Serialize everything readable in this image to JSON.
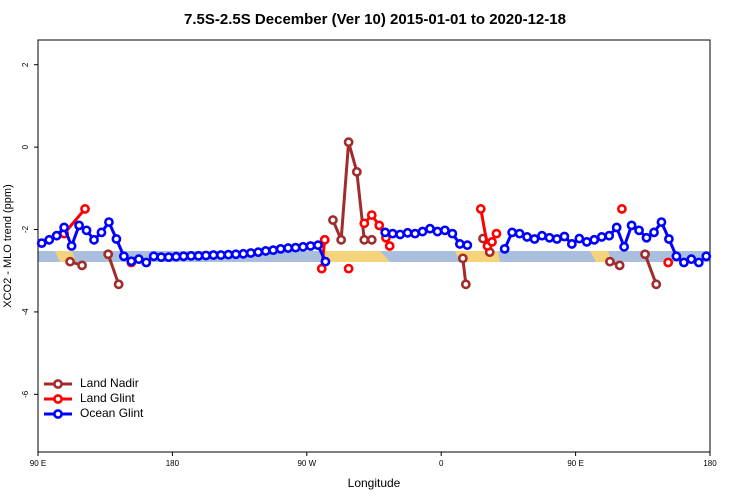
{
  "chart_data": {
    "type": "line",
    "title": "7.5S-2.5S December (Ver 10)   2015-01-01 to 2020-12-18",
    "x_label": "Longitude",
    "y_label": "XCO2 - MLO trend (ppm)",
    "xlim": [
      90,
      540
    ],
    "ylim": [
      -7.4,
      2.6
    ],
    "xticks": [
      {
        "value": 90,
        "label": "90 E"
      },
      {
        "value": 180,
        "label": "180"
      },
      {
        "value": 270,
        "label": "90 W"
      },
      {
        "value": 360,
        "label": "0"
      },
      {
        "value": 450,
        "label": "90 E"
      },
      {
        "value": 540,
        "label": "180"
      }
    ],
    "yticks": [
      2,
      0,
      -2,
      -4,
      -6
    ],
    "legend": "bottom-left",
    "series": [
      {
        "name": "Land Nadir",
        "color": "#a02c2c",
        "x": [
          111.5,
          119.5,
          127.5,
          137,
          144,
          215,
          287.5,
          293,
          298,
          303.5,
          308.5,
          313.5,
          345,
          374.5,
          376.5,
          382,
          388,
          392.5,
          435,
          473,
          479.5,
          487.5,
          496.5,
          504
        ],
        "values": [
          -2.78,
          -2.87,
          null,
          -2.6,
          -3.33,
          null,
          -1.77,
          -2.25,
          0.12,
          -0.6,
          -2.25,
          -2.25,
          null,
          -2.7,
          -3.33,
          null,
          -2.22,
          -2.55,
          null,
          -2.78,
          -2.87,
          null,
          -2.6,
          -3.33
        ]
      },
      {
        "name": "Land Glint",
        "color": "#ff0000",
        "x": [
          107.5,
          121.5,
          137,
          152.5,
          215,
          280,
          282,
          290,
          298,
          303,
          308.5,
          313.5,
          318.5,
          323,
          325.5,
          355,
          386.5,
          391,
          394,
          397,
          440,
          481,
          500,
          512
        ],
        "values": [
          -2.1,
          -1.5,
          null,
          -2.8,
          null,
          -2.95,
          -2.25,
          null,
          -2.95,
          null,
          -1.85,
          -1.65,
          -1.9,
          -2.2,
          -2.4,
          null,
          -1.5,
          -2.4,
          -2.3,
          -2.1,
          null,
          -1.5,
          null,
          -2.8
        ]
      },
      {
        "name": "Ocean Glint",
        "color": "#0000ff",
        "x": [
          92.5,
          97.5,
          102.5,
          107.5,
          112.5,
          117.5,
          122.5,
          127.5,
          132.5,
          137.5,
          142.5,
          147.5,
          152.5,
          157.5,
          162.5,
          167.5,
          172.5,
          177.5,
          182.5,
          187.5,
          192.5,
          197.5,
          202.5,
          207.5,
          212.5,
          217.5,
          222.5,
          227.5,
          232.5,
          237.5,
          242.5,
          247.5,
          252.5,
          257.5,
          262.5,
          267.5,
          272.5,
          277.5,
          282.5,
          287.5,
          322.5,
          327.5,
          332.5,
          337.5,
          342.5,
          347.5,
          352.5,
          357.5,
          362.5,
          367.5,
          372.5,
          377.5,
          382.5,
          402.5,
          407.5,
          412.5,
          417.5,
          422.5,
          427.5,
          432.5,
          437.5,
          442.5,
          447.5,
          452.5,
          457.5,
          462.5,
          467.5,
          472.5,
          477.5,
          482.5,
          487.5,
          492.5,
          497.5,
          502.5,
          507.5,
          512.5,
          517.5,
          522.5,
          527.5,
          532.5,
          537.5
        ],
        "values": [
          -2.33,
          -2.25,
          -2.15,
          -1.95,
          -2.4,
          -1.9,
          -2.02,
          -2.25,
          -2.07,
          -1.82,
          -2.23,
          -2.65,
          -2.77,
          -2.72,
          -2.8,
          -2.65,
          -2.67,
          -2.67,
          -2.66,
          -2.65,
          -2.64,
          -2.64,
          -2.63,
          -2.62,
          -2.62,
          -2.61,
          -2.6,
          -2.59,
          -2.57,
          -2.55,
          -2.52,
          -2.5,
          -2.47,
          -2.45,
          -2.44,
          -2.42,
          -2.4,
          -2.38,
          -2.78,
          null,
          -2.07,
          -2.1,
          -2.12,
          -2.08,
          -2.1,
          -2.05,
          -1.98,
          -2.05,
          -2.02,
          -2.1,
          -2.35,
          -2.38,
          null,
          -2.47,
          -2.07,
          -2.1,
          -2.18,
          -2.23,
          -2.15,
          -2.2,
          -2.23,
          -2.17,
          -2.35,
          -2.22,
          -2.3,
          -2.25,
          -2.18,
          -2.15,
          -1.95,
          -2.42,
          -1.9,
          -2.02,
          -2.2,
          -2.07,
          -1.82,
          -2.23,
          -2.65,
          -2.8,
          -2.72,
          -2.8,
          -2.65
        ]
      }
    ]
  }
}
